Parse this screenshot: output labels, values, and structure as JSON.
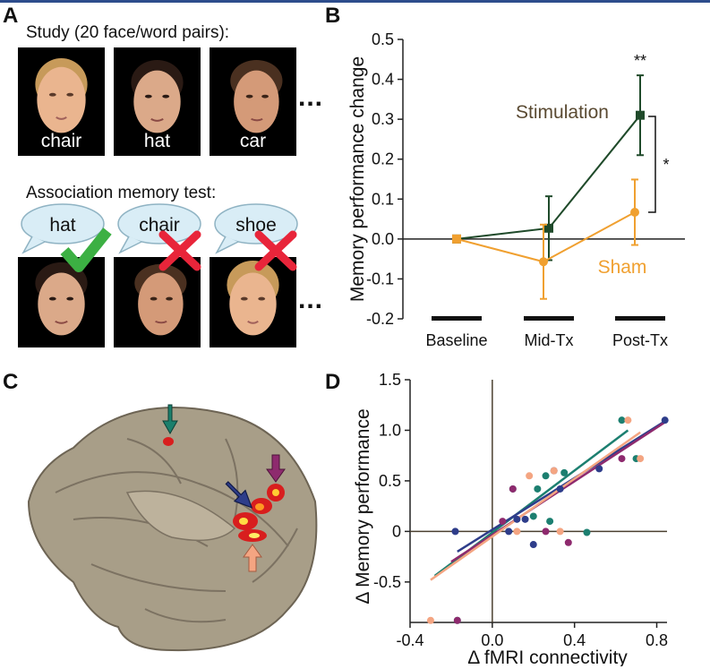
{
  "panel_a": {
    "label": "A",
    "study_title": "Study (20 face/word pairs):",
    "study_words": [
      "chair",
      "hat",
      "car"
    ],
    "ellipsis": "...",
    "test_title": "Association memory test:",
    "test_words": [
      "hat",
      "chair",
      "shoe"
    ],
    "test_marks": [
      "check-icon",
      "cross-icon",
      "cross-icon"
    ]
  },
  "panel_b": {
    "label": "B"
  },
  "panel_c": {
    "label": "C"
  },
  "panel_d": {
    "label": "D"
  },
  "chart_data": [
    {
      "type": "line",
      "title": "",
      "xlabel": "",
      "ylabel": "Memory performance change",
      "categories": [
        "Baseline",
        "Mid-Tx",
        "Post-Tx"
      ],
      "ylim": [
        -0.2,
        0.5
      ],
      "yticks": [
        "0.5",
        "0.4",
        "0.3",
        "0.2",
        "0.1",
        "0.0",
        "-0.1",
        "-0.2"
      ],
      "series": [
        {
          "name": "Stimulation",
          "color": "#1f4a2a",
          "marker": "square",
          "values": [
            0.0,
            0.027,
            0.31
          ],
          "err": [
            0,
            0.08,
            0.1
          ]
        },
        {
          "name": "Sham",
          "color": "#f0a030",
          "marker": "circle",
          "values": [
            0.0,
            -0.057,
            0.067
          ],
          "err": [
            0,
            0.093,
            0.082
          ]
        }
      ],
      "annotations": {
        "post_stim": "**",
        "bracket": "*"
      }
    },
    {
      "type": "scatter",
      "title": "",
      "xlabel": "Δ fMRI connectivity",
      "ylabel": "Δ Memory performance",
      "xlim": [
        -0.4,
        0.85
      ],
      "ylim": [
        -0.9,
        1.5
      ],
      "xticks": [
        "-0.4",
        "0.0",
        "0.4",
        "0.8"
      ],
      "yticks": [
        "1.5",
        "1.0",
        "0.5",
        "0",
        "-0.5"
      ],
      "series": [
        {
          "color": "#1c7f70",
          "points": [
            [
              -0.17,
              -0.88
            ],
            [
              0.1,
              0.42
            ],
            [
              0.2,
              0.15
            ],
            [
              0.22,
              0.42
            ],
            [
              0.26,
              0.55
            ],
            [
              0.28,
              0.1
            ],
            [
              0.35,
              0.58
            ],
            [
              0.46,
              -0.01
            ],
            [
              0.63,
              1.1
            ],
            [
              0.7,
              0.72
            ]
          ],
          "fit": [
            [
              -0.28,
              -0.44
            ],
            [
              0.66,
              1.0
            ]
          ]
        },
        {
          "color": "#2e3d8a",
          "points": [
            [
              -0.18,
              0.0
            ],
            [
              0.08,
              0.0
            ],
            [
              0.12,
              0.12
            ],
            [
              0.16,
              0.12
            ],
            [
              0.2,
              -0.13
            ],
            [
              0.33,
              0.42
            ],
            [
              0.3,
              0.6
            ],
            [
              0.52,
              0.62
            ],
            [
              0.84,
              1.1
            ]
          ],
          "fit": [
            [
              -0.17,
              -0.2
            ],
            [
              0.84,
              1.09
            ]
          ]
        },
        {
          "color": "#8e2a6e",
          "points": [
            [
              -0.17,
              -0.88
            ],
            [
              0.05,
              0.1
            ],
            [
              0.1,
              0.42
            ],
            [
              0.26,
              0.0
            ],
            [
              0.37,
              -0.11
            ],
            [
              0.63,
              0.72
            ]
          ],
          "fit": [
            [
              -0.2,
              -0.3
            ],
            [
              0.84,
              1.08
            ]
          ]
        },
        {
          "color": "#f4a582",
          "points": [
            [
              -0.3,
              -0.88
            ],
            [
              0.12,
              0.0
            ],
            [
              0.18,
              0.55
            ],
            [
              0.3,
              0.6
            ],
            [
              0.33,
              0.0
            ],
            [
              0.66,
              1.1
            ],
            [
              0.72,
              0.72
            ]
          ],
          "fit": [
            [
              -0.3,
              -0.48
            ],
            [
              0.72,
              0.98
            ]
          ]
        }
      ]
    }
  ]
}
